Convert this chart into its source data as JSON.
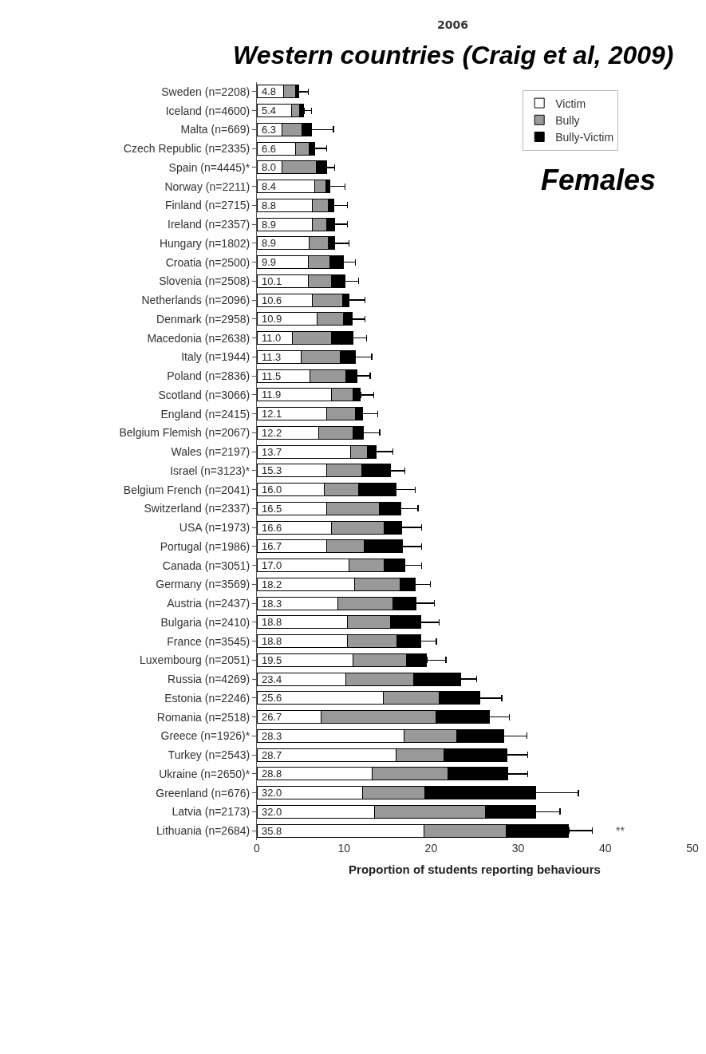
{
  "chart_data": {
    "type": "bar",
    "orientation": "horizontal",
    "stacked": true,
    "title": "2006",
    "subtitle": "Western countries (Craig et al, 2009)",
    "xlabel": "Proportion of students reporting behaviours",
    "categories": [
      "Sweden (n=2208)",
      "Iceland (n=4600)",
      "Malta (n=669)",
      "Czech Republic (n=2335)",
      "Spain (n=4445)*",
      "Norway (n=2211)",
      "Finland (n=2715)",
      "Ireland (n=2357)",
      "Hungary (n=1802)",
      "Croatia (n=2500)",
      "Slovenia (n=2508)",
      "Netherlands (n=2096)",
      "Denmark (n=2958)",
      "Macedonia (n=2638)",
      "Italy (n=1944)",
      "Poland (n=2836)",
      "Scotland (n=3066)",
      "England (n=2415)",
      "Belgium Flemish (n=2067)",
      "Wales (n=2197)",
      "Israel (n=3123)*",
      "Belgium French (n=2041)",
      "Switzerland (n=2337)",
      "USA (n=1973)",
      "Portugal (n=1986)",
      "Canada (n=3051)",
      "Germany (n=3569)",
      "Austria (n=2437)",
      "Bulgaria (n=2410)",
      "France (n=3545)",
      "Luxembourg (n=2051)",
      "Russia (n=4269)",
      "Estonia (n=2246)",
      "Romania (n=2518)",
      "Greece (n=1926)*",
      "Turkey (n=2543)",
      "Ukraine (n=2650)*",
      "Greenland (n=676)",
      "Latvia (n=2173)",
      "Lithuania (n=2684)"
    ],
    "series": [
      {
        "name": "Victim",
        "color": "#ffffff",
        "values": [
          3.1,
          4.0,
          2.9,
          4.4,
          2.9,
          6.6,
          6.4,
          6.4,
          6.0,
          5.9,
          5.9,
          6.4,
          6.9,
          4.1,
          5.1,
          6.1,
          8.6,
          8.0,
          7.1,
          10.8,
          8.0,
          7.7,
          8.0,
          8.6,
          8.0,
          10.6,
          11.2,
          9.3,
          10.4,
          10.4,
          11.0,
          10.2,
          14.5,
          7.4,
          16.9,
          16.0,
          13.2,
          12.1,
          13.5,
          19.2
        ]
      },
      {
        "name": "Bully",
        "color": "#999999",
        "values": [
          1.3,
          0.9,
          2.3,
          1.6,
          3.9,
          1.3,
          1.8,
          1.6,
          2.2,
          2.5,
          2.7,
          3.4,
          3.0,
          4.5,
          4.5,
          4.1,
          2.4,
          3.3,
          3.9,
          1.9,
          4.0,
          4.0,
          6.1,
          6.0,
          4.3,
          4.0,
          5.2,
          6.3,
          4.9,
          5.7,
          6.2,
          7.8,
          6.4,
          13.2,
          6.0,
          5.5,
          8.7,
          7.2,
          12.7,
          9.4
        ]
      },
      {
        "name": "Bully-Victim",
        "color": "#000000",
        "values": [
          0.4,
          0.5,
          1.1,
          0.6,
          1.2,
          0.5,
          0.6,
          0.9,
          0.7,
          1.5,
          1.5,
          0.8,
          1.0,
          2.4,
          1.7,
          1.3,
          0.9,
          0.8,
          1.2,
          1.0,
          3.3,
          4.3,
          2.4,
          2.0,
          4.4,
          2.4,
          1.8,
          2.7,
          3.5,
          2.7,
          2.3,
          5.4,
          4.7,
          6.1,
          5.4,
          7.2,
          6.9,
          12.7,
          5.8,
          7.2
        ],
        "errors": [
          [
            4.8,
            5.9
          ],
          [
            5.4,
            6.3
          ],
          [
            6.3,
            8.8
          ],
          [
            6.6,
            8.0
          ],
          [
            8.0,
            8.9
          ],
          [
            8.4,
            10.1
          ],
          [
            8.8,
            10.4
          ],
          [
            8.9,
            10.4
          ],
          [
            8.9,
            10.6
          ],
          [
            9.9,
            11.3
          ],
          [
            10.1,
            11.7
          ],
          [
            10.6,
            12.4
          ],
          [
            10.9,
            12.4
          ],
          [
            11.0,
            12.6
          ],
          [
            11.3,
            13.2
          ],
          [
            11.5,
            13.0
          ],
          [
            11.9,
            13.4
          ],
          [
            12.1,
            13.9
          ],
          [
            12.2,
            14.1
          ],
          [
            13.7,
            15.6
          ],
          [
            15.3,
            17.0
          ],
          [
            16.0,
            18.2
          ],
          [
            16.5,
            18.5
          ],
          [
            16.6,
            18.9
          ],
          [
            16.7,
            18.9
          ],
          [
            17.0,
            18.9
          ],
          [
            18.2,
            19.9
          ],
          [
            18.3,
            20.4
          ],
          [
            18.8,
            20.9
          ],
          [
            18.8,
            20.6
          ],
          [
            19.5,
            21.7
          ],
          [
            23.4,
            25.2
          ],
          [
            25.6,
            28.1
          ],
          [
            26.7,
            29.0
          ],
          [
            28.3,
            31.0
          ],
          [
            28.7,
            31.1
          ],
          [
            28.8,
            31.1
          ],
          [
            32.0,
            36.9
          ],
          [
            32.0,
            34.8
          ],
          [
            35.8,
            38.5
          ]
        ]
      }
    ],
    "totals": [
      "4.8",
      "5.4",
      "6.3",
      "6.6",
      "8.0",
      "8.4",
      "8.8",
      "8.9",
      "8.9",
      "9.9",
      "10.1",
      "10.6",
      "10.9",
      "11.0",
      "11.3",
      "11.5",
      "11.9",
      "12.1",
      "12.2",
      "13.7",
      "15.3",
      "16.0",
      "16.5",
      "16.6",
      "16.7",
      "17.0",
      "18.2",
      "18.3",
      "18.8",
      "18.8",
      "19.5",
      "23.4",
      "25.6",
      "26.7",
      "28.3",
      "28.7",
      "28.8",
      "32.0",
      "32.0",
      "35.8"
    ],
    "xlim": [
      0,
      50
    ],
    "xticks": [
      0,
      10,
      20,
      30,
      40,
      50
    ],
    "grid": false,
    "legend": "top right",
    "annotations": [
      "Females",
      "**"
    ]
  }
}
